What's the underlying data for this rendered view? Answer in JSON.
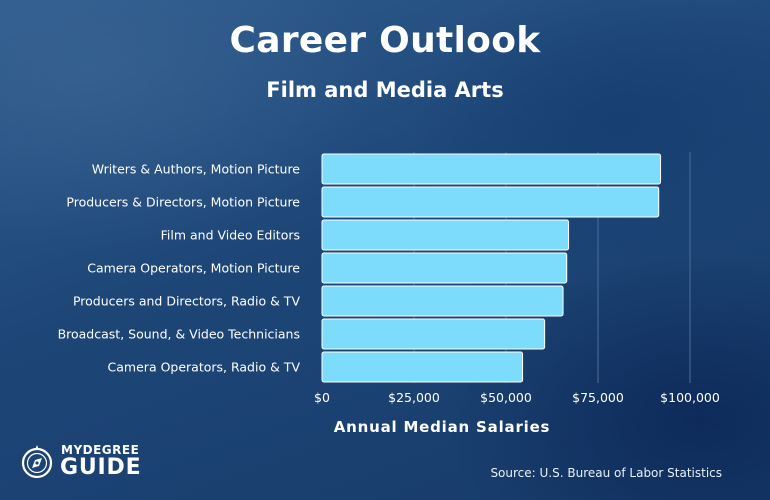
{
  "header": {
    "title": "Career Outlook",
    "subtitle": "Film and Media Arts"
  },
  "logo": {
    "line1": "MYDEGREE",
    "line2": "GUIDE",
    "icon": "compass-icon"
  },
  "source": "Source: U.S. Bureau of Labor Statistics",
  "colors": {
    "bar": "#7ddcfc",
    "bar_stroke": "#ffffff",
    "gridline": "#4d6f96",
    "text": "#ffffff",
    "background": "#1d4677"
  },
  "chart_data": {
    "type": "bar",
    "orientation": "horizontal",
    "title": "Career Outlook",
    "subtitle": "Film and Media Arts",
    "xlabel": "Annual Median Salaries",
    "ylabel": "",
    "categories": [
      "Writers & Authors, Motion Picture",
      "Producers & Directors, Motion Picture",
      "Film and Video Editors",
      "Camera Operators, Motion Picture",
      "Producers and Directors, Radio & TV",
      "Broadcast, Sound, & Video Technicians",
      "Camera Operators, Radio & TV"
    ],
    "values": [
      92000,
      91500,
      67000,
      66500,
      65500,
      60500,
      54500
    ],
    "xlim": [
      0,
      100000
    ],
    "xticks": [
      0,
      25000,
      50000,
      75000,
      100000
    ],
    "xtick_labels": [
      "$0",
      "$25,000",
      "$50,000",
      "$75,000",
      "$100,000"
    ],
    "grid": true,
    "legend": "none"
  }
}
